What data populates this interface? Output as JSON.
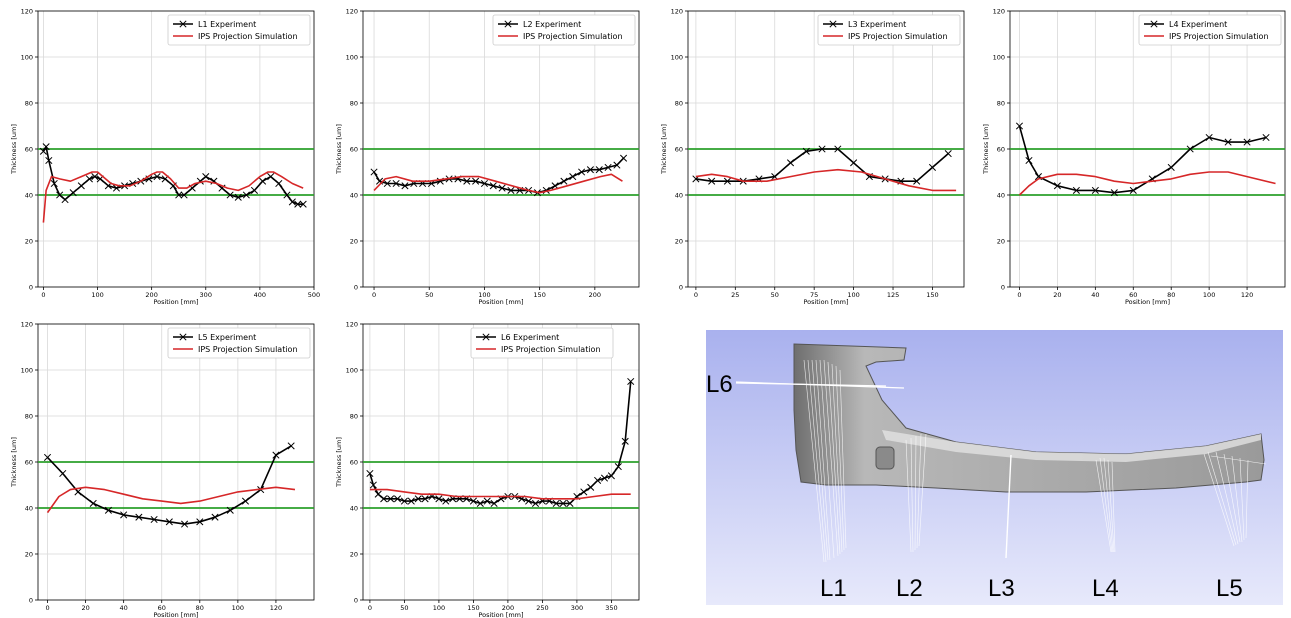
{
  "colors": {
    "experiment": "#000000",
    "simulation": "#d62728",
    "limit_line": "#2ca02c",
    "grid": "#d9d9d9",
    "render_sky_top": "#a9b1ee",
    "render_sky_bottom": "#e7e9fb"
  },
  "chart_data": [
    {
      "type": "line",
      "xlabel": "Position [mm]",
      "ylabel": "Thickness [um]",
      "xlim": [
        -10,
        500
      ],
      "ylim": [
        0,
        120
      ],
      "xticks": [
        0,
        100,
        200,
        300,
        400,
        500
      ],
      "yticks": [
        0,
        20,
        40,
        60,
        80,
        100,
        120
      ],
      "grid": true,
      "legend_position": "top-right",
      "hlines": [
        40,
        60
      ],
      "series": [
        {
          "name": "L1 Experiment",
          "marker": "x",
          "x": [
            0,
            5,
            10,
            20,
            30,
            40,
            55,
            70,
            85,
            95,
            105,
            120,
            135,
            150,
            165,
            180,
            195,
            210,
            225,
            240,
            250,
            260,
            275,
            290,
            300,
            315,
            330,
            345,
            360,
            375,
            390,
            405,
            420,
            435,
            450,
            460,
            470,
            480
          ],
          "y": [
            59,
            61,
            55,
            45,
            40,
            38,
            41,
            44,
            47,
            48,
            47,
            44,
            43,
            44,
            45,
            46,
            47,
            48,
            47,
            44,
            40,
            40,
            43,
            46,
            48,
            46,
            43,
            40,
            39,
            40,
            42,
            46,
            48,
            45,
            40,
            37,
            36,
            36
          ]
        },
        {
          "name": "IPS Projection Simulation",
          "x": [
            0,
            5,
            15,
            30,
            50,
            70,
            90,
            100,
            110,
            125,
            140,
            160,
            180,
            200,
            210,
            220,
            235,
            250,
            265,
            280,
            300,
            320,
            340,
            360,
            380,
            400,
            415,
            425,
            440,
            460,
            480
          ],
          "y": [
            28,
            42,
            48,
            47,
            46,
            48,
            50,
            50,
            48,
            45,
            44,
            44,
            46,
            49,
            50,
            50,
            47,
            43,
            43,
            45,
            46,
            45,
            43,
            42,
            44,
            48,
            50,
            50,
            48,
            45,
            43
          ]
        }
      ]
    },
    {
      "type": "line",
      "xlabel": "Position [mm]",
      "ylabel": "Thickness [um]",
      "xlim": [
        -10,
        240
      ],
      "ylim": [
        0,
        120
      ],
      "xticks": [
        0,
        50,
        100,
        150,
        200
      ],
      "yticks": [
        0,
        20,
        40,
        60,
        80,
        100,
        120
      ],
      "grid": true,
      "legend_position": "top-right",
      "hlines": [
        40,
        60
      ],
      "series": [
        {
          "name": "L2 Experiment",
          "marker": "x",
          "x": [
            0,
            5,
            12,
            20,
            28,
            36,
            44,
            52,
            60,
            68,
            76,
            84,
            92,
            100,
            108,
            116,
            124,
            132,
            140,
            148,
            156,
            164,
            172,
            180,
            188,
            196,
            204,
            212,
            220,
            226
          ],
          "y": [
            50,
            46,
            45,
            45,
            44,
            45,
            45,
            45,
            46,
            47,
            47,
            46,
            46,
            45,
            44,
            43,
            42,
            42,
            42,
            41,
            42,
            44,
            46,
            48,
            50,
            51,
            51,
            52,
            53,
            56
          ]
        },
        {
          "name": "IPS Projection Simulation",
          "x": [
            0,
            10,
            20,
            35,
            50,
            65,
            80,
            95,
            110,
            125,
            140,
            150,
            160,
            175,
            190,
            205,
            215,
            225
          ],
          "y": [
            42,
            47,
            48,
            46,
            46,
            47,
            48,
            48,
            46,
            44,
            42,
            41,
            42,
            44,
            46,
            48,
            49,
            46
          ]
        }
      ]
    },
    {
      "type": "line",
      "xlabel": "Position [mm]",
      "ylabel": "Thickness [um]",
      "xlim": [
        -5,
        170
      ],
      "ylim": [
        0,
        120
      ],
      "xticks": [
        0,
        25,
        50,
        75,
        100,
        125,
        150
      ],
      "yticks": [
        0,
        20,
        40,
        60,
        80,
        100,
        120
      ],
      "grid": true,
      "legend_position": "top-right",
      "hlines": [
        40,
        60
      ],
      "series": [
        {
          "name": "L3 Experiment",
          "marker": "x",
          "x": [
            0,
            10,
            20,
            30,
            40,
            50,
            60,
            70,
            80,
            90,
            100,
            110,
            120,
            130,
            140,
            150,
            160
          ],
          "y": [
            47,
            46,
            46,
            46,
            47,
            48,
            54,
            59,
            60,
            60,
            54,
            48,
            47,
            46,
            46,
            52,
            58
          ]
        },
        {
          "name": "IPS Projection Simulation",
          "x": [
            0,
            10,
            20,
            30,
            45,
            60,
            75,
            90,
            105,
            120,
            135,
            150,
            165
          ],
          "y": [
            48,
            49,
            48,
            46,
            46,
            48,
            50,
            51,
            50,
            47,
            44,
            42,
            42
          ]
        }
      ]
    },
    {
      "type": "line",
      "xlabel": "Position [mm]",
      "ylabel": "Thickness [um]",
      "xlim": [
        -5,
        140
      ],
      "ylim": [
        0,
        120
      ],
      "xticks": [
        0,
        20,
        40,
        60,
        80,
        100,
        120
      ],
      "yticks": [
        0,
        20,
        40,
        60,
        80,
        100,
        120
      ],
      "grid": true,
      "legend_position": "top-right",
      "hlines": [
        40,
        60
      ],
      "series": [
        {
          "name": "L4 Experiment",
          "marker": "x",
          "x": [
            0,
            5,
            10,
            20,
            30,
            40,
            50,
            60,
            70,
            80,
            90,
            100,
            110,
            120,
            130
          ],
          "y": [
            70,
            55,
            48,
            44,
            42,
            42,
            41,
            42,
            47,
            52,
            60,
            65,
            63,
            63,
            65
          ]
        },
        {
          "name": "IPS Projection Simulation",
          "x": [
            0,
            5,
            10,
            20,
            30,
            40,
            50,
            60,
            70,
            80,
            90,
            100,
            110,
            120,
            135
          ],
          "y": [
            40,
            44,
            47,
            49,
            49,
            48,
            46,
            45,
            46,
            47,
            49,
            50,
            50,
            48,
            45
          ]
        }
      ]
    },
    {
      "type": "line",
      "xlabel": "Position [mm]",
      "ylabel": "Thickness [um]",
      "xlim": [
        -5,
        140
      ],
      "ylim": [
        0,
        120
      ],
      "xticks": [
        0,
        20,
        40,
        60,
        80,
        100,
        120
      ],
      "yticks": [
        0,
        20,
        40,
        60,
        80,
        100,
        120
      ],
      "grid": true,
      "legend_position": "top-right",
      "hlines": [
        40,
        60
      ],
      "series": [
        {
          "name": "L5 Experiment",
          "marker": "x",
          "x": [
            0,
            8,
            16,
            24,
            32,
            40,
            48,
            56,
            64,
            72,
            80,
            88,
            96,
            104,
            112,
            120,
            128
          ],
          "y": [
            62,
            55,
            47,
            42,
            39,
            37,
            36,
            35,
            34,
            33,
            34,
            36,
            39,
            43,
            48,
            63,
            67
          ]
        },
        {
          "name": "IPS Projection Simulation",
          "x": [
            0,
            6,
            12,
            20,
            30,
            40,
            50,
            60,
            70,
            80,
            90,
            100,
            110,
            120,
            130
          ],
          "y": [
            38,
            45,
            48,
            49,
            48,
            46,
            44,
            43,
            42,
            43,
            45,
            47,
            48,
            49,
            48
          ]
        }
      ]
    },
    {
      "type": "line",
      "xlabel": "Position [mm]",
      "ylabel": "Thickness [um]",
      "xlim": [
        -10,
        390
      ],
      "ylim": [
        0,
        120
      ],
      "xticks": [
        0,
        50,
        100,
        150,
        200,
        250,
        300,
        350
      ],
      "yticks": [
        0,
        20,
        40,
        60,
        80,
        100,
        120
      ],
      "grid": true,
      "legend_position": "top-left",
      "hlines": [
        40,
        60
      ],
      "series": [
        {
          "name": "L6 Experiment",
          "marker": "x",
          "x": [
            0,
            5,
            12,
            20,
            30,
            40,
            50,
            60,
            70,
            80,
            90,
            100,
            110,
            120,
            130,
            140,
            150,
            160,
            170,
            180,
            190,
            200,
            210,
            220,
            230,
            240,
            250,
            260,
            270,
            280,
            290,
            300,
            310,
            320,
            330,
            340,
            350,
            360,
            370,
            378
          ],
          "y": [
            55,
            50,
            46,
            44,
            44,
            44,
            43,
            43,
            44,
            44,
            45,
            44,
            43,
            44,
            44,
            44,
            43,
            42,
            43,
            42,
            44,
            45,
            45,
            44,
            43,
            42,
            43,
            43,
            42,
            42,
            42,
            45,
            47,
            49,
            52,
            53,
            54,
            58,
            69,
            95
          ]
        },
        {
          "name": "IPS Projection Simulation",
          "x": [
            0,
            25,
            50,
            75,
            100,
            125,
            150,
            175,
            200,
            225,
            250,
            275,
            300,
            325,
            350,
            370,
            378
          ],
          "y": [
            48,
            48,
            47,
            46,
            46,
            45,
            45,
            45,
            45,
            45,
            44,
            44,
            44,
            45,
            46,
            46,
            46
          ]
        }
      ]
    }
  ],
  "render": {
    "line_labels": [
      "L1",
      "L2",
      "L3",
      "L4",
      "L5",
      "L6"
    ],
    "part_color": "#9a9a9a"
  }
}
